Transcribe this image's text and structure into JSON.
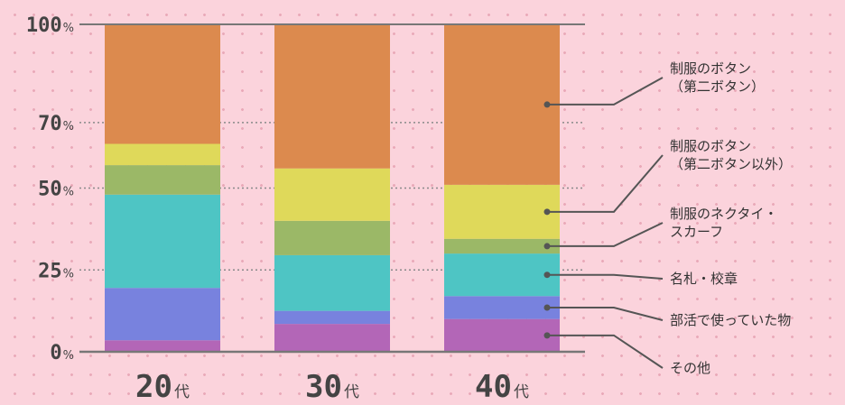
{
  "chart_data": {
    "type": "stacked-bar",
    "title": "",
    "xlabel": "",
    "ylabel": "",
    "ylim": [
      0,
      100
    ],
    "y_ticks": [
      {
        "value": 0,
        "label": "0",
        "unit": "%"
      },
      {
        "value": 25,
        "label": "25",
        "unit": "%"
      },
      {
        "value": 50,
        "label": "50",
        "unit": "%"
      },
      {
        "value": 70,
        "label": "70",
        "unit": "%"
      },
      {
        "value": 100,
        "label": "100",
        "unit": "%"
      }
    ],
    "categories": [
      {
        "number": "20",
        "suffix": "代"
      },
      {
        "number": "30",
        "suffix": "代"
      },
      {
        "number": "40",
        "suffix": "代"
      }
    ],
    "series": [
      {
        "name": "その他",
        "name_lines": [
          "その他"
        ],
        "color": "#b366b7",
        "values": [
          3.5,
          8.5,
          10
        ]
      },
      {
        "name": "部活で使っていた物",
        "name_lines": [
          "部活で使っていた物"
        ],
        "color": "#7882de",
        "values": [
          16,
          4,
          7
        ]
      },
      {
        "name": "名札・校章",
        "name_lines": [
          "名札・校章"
        ],
        "color": "#4ec5c4",
        "values": [
          28.5,
          17,
          13
        ]
      },
      {
        "name": "制服のネクタイ・スカーフ",
        "name_lines": [
          "制服のネクタイ・",
          "スカーフ"
        ],
        "color": "#9bb867",
        "values": [
          9,
          10.5,
          4.5
        ]
      },
      {
        "name": "制服のボタン（第二ボタン以外）",
        "name_lines": [
          "制服のボタン",
          "（第二ボタン以外）"
        ],
        "color": "#dfd95a",
        "values": [
          6.5,
          16,
          16.5
        ]
      },
      {
        "name": "制服のボタン（第二ボタン）",
        "name_lines": [
          "制服のボタン",
          "（第二ボタン）"
        ],
        "color": "#dc8a4e",
        "values": [
          36.5,
          44,
          49
        ]
      }
    ],
    "grid": true,
    "legend_position": "right"
  }
}
